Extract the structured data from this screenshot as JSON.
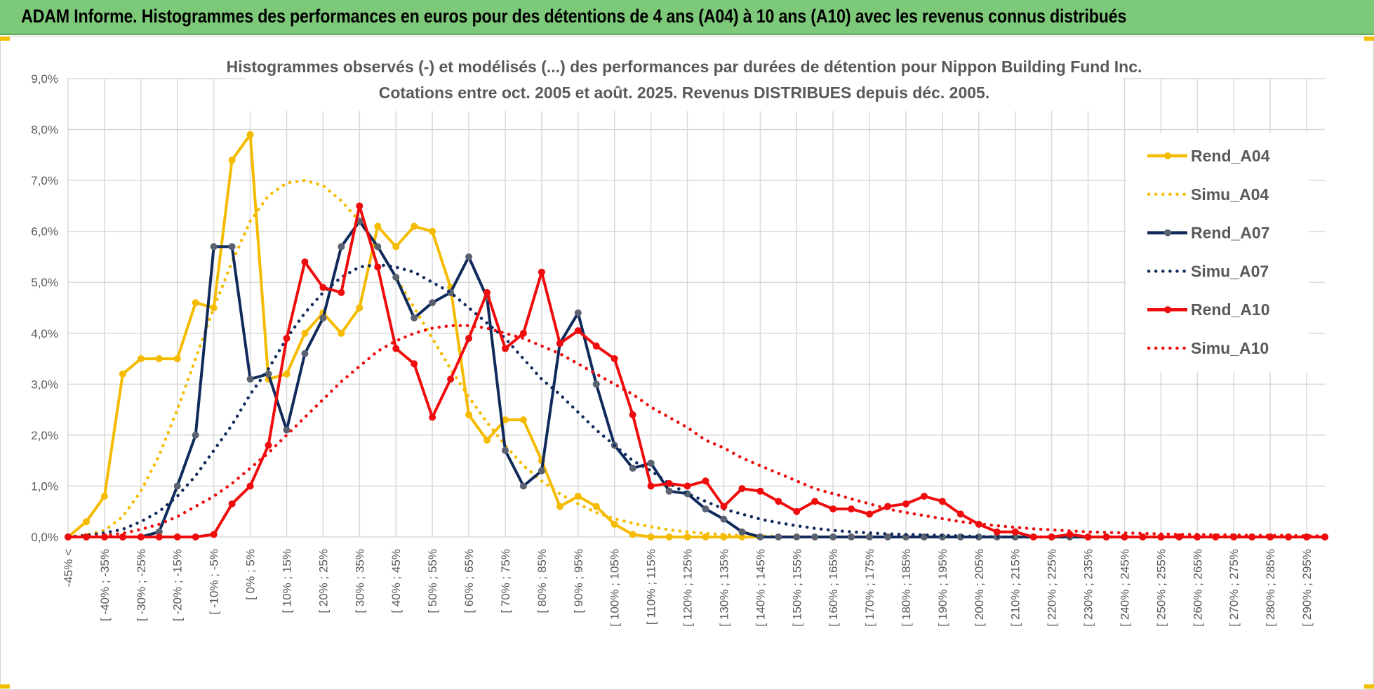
{
  "banner": {
    "title": "ADAM Informe. Histogrammes des performances en euros pour des détentions de 4 ans (A04) à 10 ans (A10) avec les revenus connus distribués"
  },
  "chart_data": {
    "type": "line",
    "title": "Histogrammes observés (-) et modélisés (...) des performances par durées de détention pour Nippon Building Fund Inc.",
    "subtitle": "Cotations entre oct. 2005 et août. 2025. Revenus DISTRIBUES depuis déc. 2005.",
    "xlabel": "",
    "ylabel": "",
    "ylim": [
      0,
      9
    ],
    "yticks": [
      "0,0%",
      "1,0%",
      "2,0%",
      "3,0%",
      "4,0%",
      "5,0%",
      "6,0%",
      "7,0%",
      "8,0%",
      "9,0%"
    ],
    "grid": true,
    "legend_position": "right",
    "categories": [
      "-45% <",
      "",
      "[ -40% ; -35%",
      "",
      "[ -30% ; -25%",
      "",
      "[ -20% ; -15%",
      "",
      "[ -10% ; -5%",
      "",
      "[ 0% ; 5%",
      "",
      "[ 10% ; 15%",
      "",
      "[ 20% ; 25%",
      "",
      "[ 30% ; 35%",
      "",
      "[ 40% ; 45%",
      "",
      "[ 50% ; 55%",
      "",
      "[ 60% ; 65%",
      "",
      "[ 70% ; 75%",
      "",
      "[ 80% ; 85%",
      "",
      "[ 90% ; 95%",
      "",
      "[ 100% ; 105%",
      "",
      "[ 110% ; 115%",
      "",
      "[ 120% ; 125%",
      "",
      "[ 130% ; 135%",
      "",
      "[ 140% ; 145%",
      "",
      "[ 150% ; 155%",
      "",
      "[ 160% ; 165%",
      "",
      "[ 170% ; 175%",
      "",
      "[ 180% ; 185%",
      "",
      "[ 190% ; 195%",
      "",
      "[ 200% ; 205%",
      "",
      "[ 210% ; 215%",
      "",
      "[ 220% ; 225%",
      "",
      "[ 230% ; 235%",
      "",
      "[ 240% ; 245%",
      "",
      "[ 250% ; 255%",
      "",
      "[ 260% ; 265%",
      "",
      "[ 270% ; 275%",
      "",
      "[ 280% ; 285%",
      "",
      "[ 290% ; 295%",
      ""
    ],
    "series": [
      {
        "name": "Rend_A04",
        "style": "solid",
        "color": "#f5bb00",
        "values": [
          0,
          0.3,
          0.8,
          3.2,
          3.5,
          3.5,
          3.5,
          4.6,
          4.5,
          7.4,
          7.9,
          3.1,
          3.2,
          4.0,
          4.4,
          4.0,
          4.5,
          6.1,
          5.7,
          6.1,
          6.0,
          4.9,
          2.4,
          1.9,
          2.3,
          2.3,
          1.5,
          0.6,
          0.8,
          0.6,
          0.25,
          0.05,
          0,
          0,
          0,
          0,
          0,
          0,
          0,
          0,
          0,
          0,
          0,
          0,
          0,
          0,
          0,
          0,
          0,
          0,
          0,
          0,
          0,
          0,
          0,
          0,
          0,
          0,
          0,
          0,
          0,
          0,
          0,
          0,
          0,
          0,
          0,
          0,
          0,
          0
        ]
      },
      {
        "name": "Simu_A04",
        "style": "dotted",
        "color": "#f5bb00",
        "values": [
          0,
          0.04,
          0.13,
          0.4,
          0.9,
          1.6,
          2.5,
          3.5,
          4.5,
          5.4,
          6.2,
          6.7,
          6.95,
          7.0,
          6.9,
          6.6,
          6.2,
          5.7,
          5.1,
          4.5,
          3.9,
          3.3,
          2.75,
          2.25,
          1.8,
          1.4,
          1.1,
          0.85,
          0.65,
          0.48,
          0.36,
          0.27,
          0.2,
          0.14,
          0.1,
          0.07,
          0.05,
          0.03,
          0.02,
          0.01,
          0,
          0,
          0,
          0,
          0,
          0,
          0,
          0,
          0,
          0,
          0,
          0,
          0,
          0,
          0,
          0,
          0,
          0,
          0,
          0,
          0,
          0,
          0,
          0,
          0,
          0,
          0,
          0,
          0,
          0
        ]
      },
      {
        "name": "Rend_A07",
        "style": "solid",
        "color": "#102a5c",
        "values": [
          0,
          0,
          0,
          0,
          0,
          0.1,
          1.0,
          2.0,
          5.7,
          5.7,
          3.1,
          3.2,
          2.1,
          3.6,
          4.3,
          5.7,
          6.2,
          5.7,
          5.1,
          4.3,
          4.6,
          4.8,
          5.5,
          4.7,
          1.7,
          1.0,
          1.3,
          3.8,
          4.4,
          3.0,
          1.8,
          1.35,
          1.45,
          0.9,
          0.85,
          0.55,
          0.35,
          0.1,
          0,
          0,
          0,
          0,
          0,
          0,
          0,
          0,
          0,
          0,
          0,
          0,
          0,
          0,
          0,
          0,
          0,
          0,
          0,
          0,
          0,
          0,
          0,
          0,
          0,
          0,
          0,
          0,
          0,
          0,
          0,
          0
        ]
      },
      {
        "name": "Simu_A07",
        "style": "dotted",
        "color": "#102a5c",
        "values": [
          0,
          0.03,
          0.08,
          0.15,
          0.3,
          0.5,
          0.8,
          1.2,
          1.7,
          2.2,
          2.8,
          3.3,
          3.9,
          4.4,
          4.8,
          5.1,
          5.3,
          5.35,
          5.3,
          5.2,
          5.0,
          4.8,
          4.5,
          4.2,
          3.9,
          3.5,
          3.1,
          2.8,
          2.45,
          2.1,
          1.8,
          1.5,
          1.3,
          1.05,
          0.85,
          0.7,
          0.55,
          0.45,
          0.35,
          0.28,
          0.22,
          0.17,
          0.13,
          0.1,
          0.08,
          0.06,
          0.05,
          0.04,
          0.03,
          0.02,
          0.01,
          0,
          0,
          0,
          0,
          0,
          0,
          0,
          0,
          0,
          0,
          0,
          0,
          0,
          0,
          0,
          0,
          0,
          0,
          0
        ]
      },
      {
        "name": "Rend_A10",
        "style": "solid",
        "color": "#ee0c0c",
        "values": [
          0,
          0,
          0,
          0,
          0,
          0,
          0,
          0,
          0.05,
          0.65,
          1.0,
          1.8,
          3.9,
          5.4,
          4.9,
          4.8,
          6.5,
          5.3,
          3.7,
          3.4,
          2.35,
          3.1,
          3.9,
          4.8,
          3.7,
          4.0,
          5.2,
          3.8,
          4.05,
          3.75,
          3.5,
          2.4,
          1.0,
          1.05,
          1.0,
          1.1,
          0.6,
          0.95,
          0.9,
          0.7,
          0.5,
          0.7,
          0.55,
          0.55,
          0.45,
          0.6,
          0.65,
          0.8,
          0.7,
          0.45,
          0.25,
          0.1,
          0.1,
          0,
          0,
          0.05,
          0,
          0,
          0,
          0,
          0,
          0,
          0,
          0,
          0,
          0,
          0,
          0,
          0,
          0
        ]
      },
      {
        "name": "Simu_A10",
        "style": "dotted",
        "color": "#ee0c0c",
        "values": [
          0,
          0.01,
          0.03,
          0.07,
          0.15,
          0.25,
          0.4,
          0.6,
          0.8,
          1.05,
          1.35,
          1.65,
          2.0,
          2.35,
          2.7,
          3.05,
          3.35,
          3.65,
          3.85,
          4.0,
          4.1,
          4.15,
          4.15,
          4.1,
          4.0,
          3.9,
          3.75,
          3.6,
          3.4,
          3.2,
          3.0,
          2.8,
          2.55,
          2.35,
          2.15,
          1.9,
          1.75,
          1.55,
          1.4,
          1.25,
          1.1,
          0.95,
          0.85,
          0.75,
          0.65,
          0.55,
          0.48,
          0.42,
          0.36,
          0.3,
          0.26,
          0.22,
          0.19,
          0.16,
          0.14,
          0.12,
          0.1,
          0.09,
          0.08,
          0.07,
          0.06,
          0.05,
          0.05,
          0.04,
          0.04,
          0.03,
          0.03,
          0.03,
          0.02,
          0.02
        ]
      }
    ]
  }
}
